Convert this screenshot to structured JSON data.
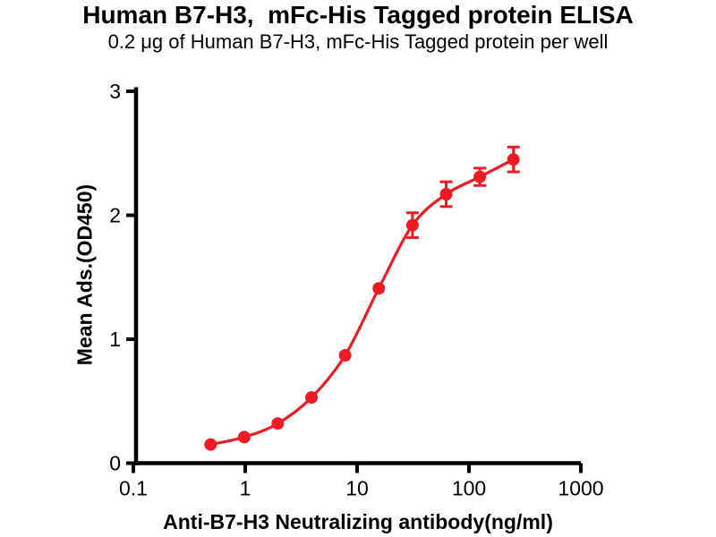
{
  "chart_data": {
    "type": "scatter",
    "title": "Human B7-H3,  mFc-His Tagged protein ELISA",
    "subtitle": "0.2 μg of Human B7-H3, mFc-His Tagged protein per well",
    "xlabel": "Anti-B7-H3 Neutralizing antibody(ng/ml)",
    "ylabel": "Mean Ads.(OD450)",
    "x_scale": "log10",
    "xlim": [
      0.1,
      1000
    ],
    "ylim": [
      0,
      3
    ],
    "grid": false,
    "legend": "none",
    "background_color": "#ffffff",
    "axis_color": "#000000",
    "x_ticks": [
      {
        "value": 0.1,
        "label": "0.1"
      },
      {
        "value": 1,
        "label": "1"
      },
      {
        "value": 10,
        "label": "10"
      },
      {
        "value": 100,
        "label": "100"
      },
      {
        "value": 1000,
        "label": "1000"
      }
    ],
    "y_ticks": [
      {
        "value": 0,
        "label": "0"
      },
      {
        "value": 1,
        "label": "1"
      },
      {
        "value": 2,
        "label": "2"
      },
      {
        "value": 3,
        "label": "3"
      }
    ],
    "series": [
      {
        "name": "Anti-B7-H3 Neutralizing antibody",
        "color": "#ED1C24",
        "marker": "circle",
        "fit": "4PL sigmoidal dose-response curve",
        "points": [
          {
            "x": 0.49,
            "y": 0.15,
            "y_err": null
          },
          {
            "x": 0.98,
            "y": 0.21,
            "y_err": null
          },
          {
            "x": 1.95,
            "y": 0.32,
            "y_err": null
          },
          {
            "x": 3.91,
            "y": 0.53,
            "y_err": null
          },
          {
            "x": 7.81,
            "y": 0.87,
            "y_err": null
          },
          {
            "x": 15.63,
            "y": 1.41,
            "y_err": null
          },
          {
            "x": 31.25,
            "y": 1.92,
            "y_err": 0.1
          },
          {
            "x": 62.5,
            "y": 2.17,
            "y_err": 0.1
          },
          {
            "x": 125,
            "y": 2.31,
            "y_err": 0.07
          },
          {
            "x": 250,
            "y": 2.45,
            "y_err": 0.1
          }
        ]
      }
    ]
  }
}
